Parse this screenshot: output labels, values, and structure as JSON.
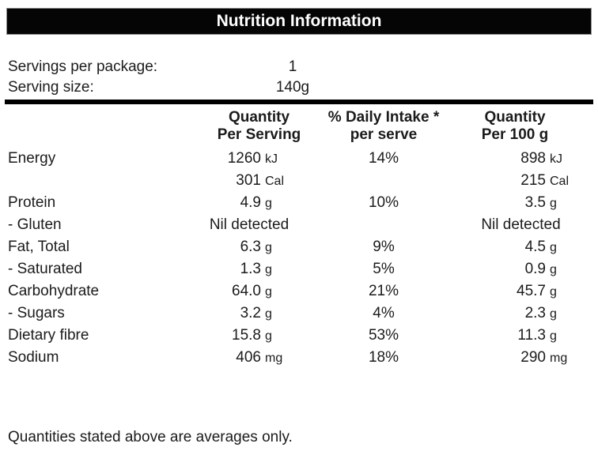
{
  "title": "Nutrition Information",
  "serving_info": {
    "servings_per_package": {
      "label": "Servings per package:",
      "value": "1"
    },
    "serving_size": {
      "label": "Serving size:",
      "value": "140g"
    }
  },
  "table": {
    "headers": {
      "quantity_per_serving": {
        "line1": "Quantity",
        "line2": "Per Serving"
      },
      "daily_intake": {
        "line1": "% Daily Intake *",
        "line2": "per serve"
      },
      "quantity_per_100g": {
        "line1": "Quantity",
        "line2": "Per 100 g"
      }
    },
    "rows": [
      {
        "label": "Energy",
        "qty_value": "1260",
        "qty_unit": "kJ",
        "daily_intake": "14%",
        "p100_value": "898",
        "p100_unit": "kJ"
      },
      {
        "label": "",
        "qty_value": "301",
        "qty_unit": "Cal",
        "daily_intake": "",
        "p100_value": "215",
        "p100_unit": "Cal"
      },
      {
        "label": "Protein",
        "qty_value": "4.9",
        "qty_unit": "g",
        "daily_intake": "10%",
        "p100_value": "3.5",
        "p100_unit": "g"
      },
      {
        "label": "- Gluten",
        "qty_value": "Nil detected",
        "qty_unit": "",
        "daily_intake": "",
        "p100_value": "Nil detected",
        "p100_unit": ""
      },
      {
        "label": "Fat, Total",
        "qty_value": "6.3",
        "qty_unit": "g",
        "daily_intake": "9%",
        "p100_value": "4.5",
        "p100_unit": "g"
      },
      {
        "label": "- Saturated",
        "qty_value": "1.3",
        "qty_unit": "g",
        "daily_intake": "5%",
        "p100_value": "0.9",
        "p100_unit": "g"
      },
      {
        "label": "Carbohydrate",
        "qty_value": "64.0",
        "qty_unit": "g",
        "daily_intake": "21%",
        "p100_value": "45.7",
        "p100_unit": "g"
      },
      {
        "label": "- Sugars",
        "qty_value": "3.2",
        "qty_unit": "g",
        "daily_intake": "4%",
        "p100_value": "2.3",
        "p100_unit": "g"
      },
      {
        "label": "Dietary fibre",
        "qty_value": "15.8",
        "qty_unit": "g",
        "daily_intake": "53%",
        "p100_value": "11.3",
        "p100_unit": "g"
      },
      {
        "label": "Sodium",
        "qty_value": "406",
        "qty_unit": "mg",
        "daily_intake": "18%",
        "p100_value": "290",
        "p100_unit": "mg"
      }
    ]
  },
  "footer": "Quantities stated above are averages only.",
  "colors": {
    "title_bar_bg": "#050505",
    "title_bar_text": "#ffffff",
    "body_text": "#1b1b1b",
    "rule": "#000000"
  }
}
